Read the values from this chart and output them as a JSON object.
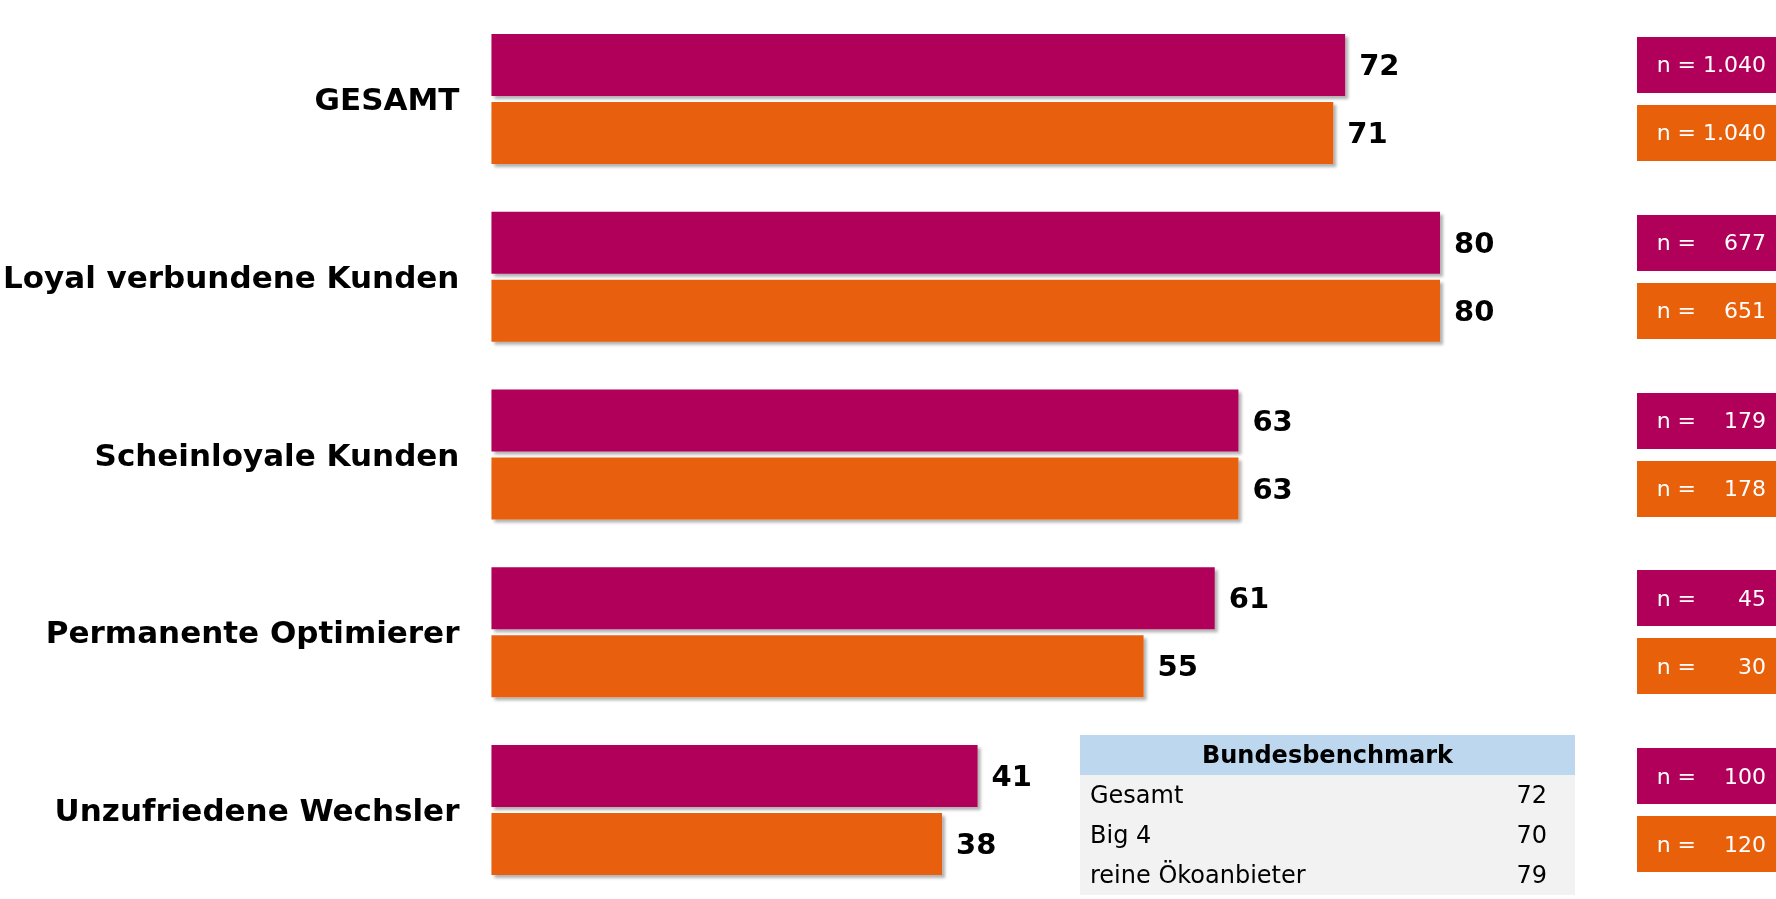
{
  "chart_data": {
    "type": "bar",
    "orientation": "horizontal",
    "categories": [
      "GESAMT",
      "Loyal verbundene Kunden",
      "Scheinloyale Kunden",
      "Permanente Optimierer",
      "Unzufriedene Wechsler"
    ],
    "series": [
      {
        "color": "#b0005a",
        "values": [
          72,
          80,
          63,
          61,
          41
        ]
      },
      {
        "color": "#e8600a",
        "values": [
          71,
          80,
          63,
          55,
          38
        ]
      }
    ],
    "data_labels": true,
    "annotations": [
      "n = 1.040",
      "n = 1.040",
      "n =    677",
      "n =    651",
      "n =    179",
      "n =    178",
      "n =      45",
      "n =      30",
      "n =    100",
      "n =    120",
      "Bundesbenchmark",
      "Gesamt",
      "72",
      "Big 4",
      "70",
      "reine Ökoanbieter",
      "79"
    ]
  }
}
